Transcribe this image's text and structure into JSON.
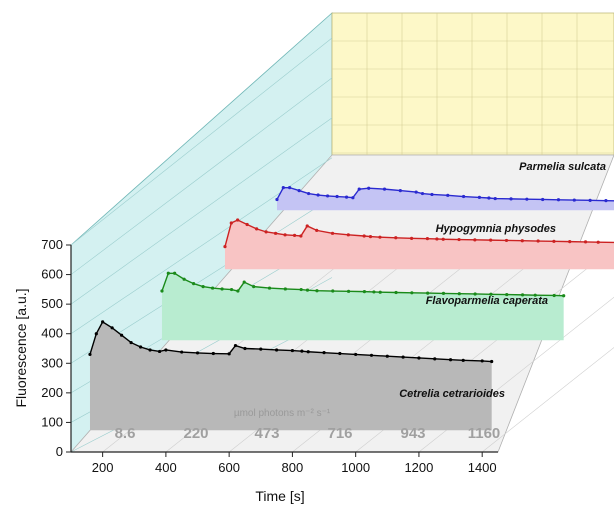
{
  "chart_data": {
    "type": "area",
    "xlabel": "Time [s]",
    "ylabel": "Fluorescence [a.u.]",
    "xlim": [
      100,
      1450
    ],
    "ylim": [
      0,
      700
    ],
    "x_ticks": [
      "200",
      "400",
      "600",
      "800",
      "1000",
      "1200",
      "1400"
    ],
    "y_ticks": [
      "0",
      "100",
      "200",
      "300",
      "400",
      "500",
      "600",
      "700"
    ],
    "light_unit": "µmol photons m⁻² s⁻¹",
    "light_levels": [
      "8.6",
      "220",
      "473",
      "716",
      "943",
      "1160"
    ],
    "grid": true,
    "layout": "3d-stacked-ribbons",
    "series": [
      {
        "name": "Cetrelia cetrarioides",
        "color": "#000000",
        "fill": "#b8b8b8",
        "x": [
          160,
          180,
          200,
          230,
          260,
          290,
          320,
          350,
          380,
          400,
          450,
          500,
          550,
          600,
          620,
          650,
          700,
          750,
          800,
          830,
          850,
          900,
          950,
          1000,
          1050,
          1100,
          1150,
          1200,
          1250,
          1300,
          1340,
          1400,
          1430
        ],
        "y": [
          330,
          400,
          440,
          420,
          395,
          370,
          355,
          345,
          340,
          345,
          338,
          335,
          333,
          332,
          360,
          350,
          348,
          345,
          343,
          341,
          339,
          336,
          333,
          330,
          327,
          324,
          321,
          318,
          315,
          312,
          310,
          308,
          306
        ]
      },
      {
        "name": "Flavoparmelia caperata",
        "color": "#1a8a1a",
        "fill": "#b8ecd0",
        "x": [
          160,
          180,
          200,
          230,
          260,
          290,
          320,
          350,
          380,
          400,
          420,
          450,
          500,
          550,
          600,
          620,
          650,
          700,
          750,
          800,
          830,
          850,
          900,
          950,
          1000,
          1050,
          1100,
          1150,
          1200,
          1250,
          1300,
          1340,
          1400,
          1430
        ],
        "y": [
          240,
          300,
          300,
          280,
          265,
          255,
          250,
          247,
          245,
          240,
          270,
          255,
          250,
          247,
          245,
          243,
          241,
          240,
          239,
          238,
          237,
          236,
          235,
          234,
          233,
          232,
          231,
          230,
          229,
          228,
          227,
          226,
          225,
          224
        ]
      },
      {
        "name": "Hypogymnia physodes",
        "color": "#cc2222",
        "fill": "#f8c4c4",
        "x": [
          160,
          180,
          200,
          230,
          260,
          290,
          320,
          350,
          380,
          400,
          420,
          450,
          500,
          550,
          600,
          620,
          650,
          700,
          750,
          800,
          830,
          850,
          900,
          950,
          1000,
          1050,
          1100,
          1150,
          1200,
          1250,
          1300,
          1340,
          1400,
          1430
        ],
        "y": [
          150,
          230,
          240,
          225,
          210,
          200,
          195,
          190,
          188,
          186,
          220,
          205,
          195,
          190,
          186,
          184,
          182,
          180,
          178,
          177,
          176,
          175,
          174,
          173,
          172,
          171,
          170,
          169,
          168,
          167,
          166,
          165,
          164,
          163
        ]
      },
      {
        "name": "Parmelia sulcata",
        "color": "#2a2ad0",
        "fill": "#c4c4f4",
        "x": [
          160,
          180,
          200,
          230,
          260,
          290,
          320,
          350,
          380,
          400,
          420,
          450,
          500,
          550,
          600,
          620,
          650,
          700,
          750,
          800,
          830,
          850,
          900,
          950,
          1000,
          1050,
          1100,
          1150,
          1200,
          1250,
          1300,
          1340,
          1400,
          1430
        ],
        "y": [
          110,
          150,
          150,
          140,
          130,
          125,
          122,
          120,
          118,
          116,
          145,
          148,
          145,
          140,
          135,
          130,
          127,
          124,
          120,
          117,
          115,
          113,
          112,
          111,
          110,
          109,
          108,
          107,
          106,
          105,
          104,
          103,
          102,
          101
        ]
      }
    ]
  }
}
